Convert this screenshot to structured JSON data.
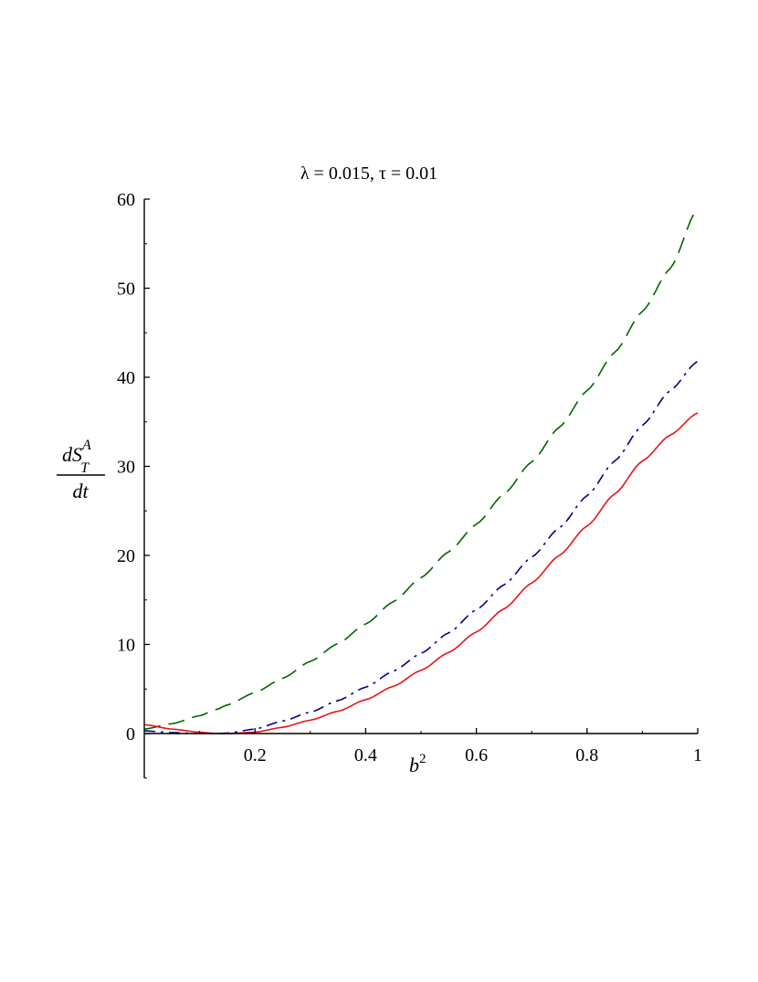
{
  "chart_data": {
    "type": "line",
    "title": "λ = 0.015, τ = 0.01",
    "xlabel": {
      "base": "b",
      "sup": "2"
    },
    "ylabel": {
      "num_base": "dS",
      "num_sup": "A",
      "num_sub": "T",
      "den": "dt"
    },
    "xlim": [
      0,
      1
    ],
    "ylim": [
      -5,
      60
    ],
    "grid": false,
    "x_ticks": [
      0.2,
      0.4,
      0.6,
      0.8,
      1
    ],
    "x_tick_labels": [
      "0.2",
      "0.4",
      "0.6",
      "0.8",
      "1"
    ],
    "y_ticks": [
      0,
      10,
      20,
      30,
      40,
      50,
      60
    ],
    "y_tick_labels": [
      "0",
      "10",
      "20",
      "30",
      "40",
      "50",
      "60"
    ],
    "x": [
      0,
      0.05,
      0.1,
      0.13,
      0.15,
      0.2,
      0.25,
      0.3,
      0.35,
      0.4,
      0.45,
      0.5,
      0.55,
      0.6,
      0.65,
      0.7,
      0.75,
      0.8,
      0.85,
      0.9,
      0.95,
      1.0
    ],
    "series": [
      {
        "color": "#006400",
        "dash": "dashed",
        "values": [
          0.5,
          1.1,
          2.0,
          2.7,
          3.2,
          4.6,
          6.2,
          8.1,
          10.1,
          12.3,
          14.8,
          17.5,
          20.4,
          23.5,
          26.9,
          30.5,
          34.4,
          38.5,
          42.8,
          47.4,
          52.2,
          59.0
        ]
      },
      {
        "color": "#00008b",
        "dash": "dash-dot",
        "values": [
          0.3,
          0.1,
          0.0,
          0.0,
          0.05,
          0.5,
          1.4,
          2.4,
          3.7,
          5.2,
          7.0,
          9.0,
          11.3,
          13.9,
          16.7,
          19.8,
          23.1,
          26.7,
          30.6,
          34.6,
          38.5,
          41.8
        ]
      },
      {
        "color": "#e8141b",
        "dash": "solid",
        "values": [
          1.0,
          0.5,
          0.15,
          0.0,
          0.0,
          0.15,
          0.7,
          1.5,
          2.5,
          3.8,
          5.3,
          7.1,
          9.1,
          11.4,
          14.0,
          16.9,
          20.0,
          23.3,
          26.9,
          30.6,
          33.5,
          36.0
        ]
      }
    ]
  }
}
